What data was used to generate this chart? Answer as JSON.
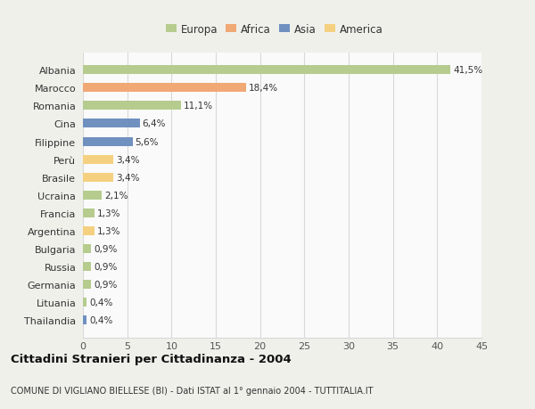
{
  "countries": [
    "Albania",
    "Marocco",
    "Romania",
    "Cina",
    "Filippine",
    "Perù",
    "Brasile",
    "Ucraina",
    "Francia",
    "Argentina",
    "Bulgaria",
    "Russia",
    "Germania",
    "Lituania",
    "Thailandia"
  ],
  "values": [
    41.5,
    18.4,
    11.1,
    6.4,
    5.6,
    3.4,
    3.4,
    2.1,
    1.3,
    1.3,
    0.9,
    0.9,
    0.9,
    0.4,
    0.4
  ],
  "labels": [
    "41,5%",
    "18,4%",
    "11,1%",
    "6,4%",
    "5,6%",
    "3,4%",
    "3,4%",
    "2,1%",
    "1,3%",
    "1,3%",
    "0,9%",
    "0,9%",
    "0,9%",
    "0,4%",
    "0,4%"
  ],
  "colors": [
    "#b5cc8e",
    "#f0a875",
    "#b5cc8e",
    "#7090c0",
    "#7090c0",
    "#f5d080",
    "#f5d080",
    "#b5cc8e",
    "#b5cc8e",
    "#f5d080",
    "#b5cc8e",
    "#b5cc8e",
    "#b5cc8e",
    "#b5cc8e",
    "#7090c0"
  ],
  "legend_labels": [
    "Europa",
    "Africa",
    "Asia",
    "America"
  ],
  "legend_colors": [
    "#b5cc8e",
    "#f0a875",
    "#7090c0",
    "#f5d080"
  ],
  "title": "Cittadini Stranieri per Cittadinanza - 2004",
  "subtitle": "COMUNE DI VIGLIANO BIELLESE (BI) - Dati ISTAT al 1° gennaio 2004 - TUTTITALIA.IT",
  "xlim": [
    0,
    45
  ],
  "xticks": [
    0,
    5,
    10,
    15,
    20,
    25,
    30,
    35,
    40,
    45
  ],
  "background_color": "#f0f0eb",
  "bar_background": "#fafafa",
  "grid_color": "#d8d8d8",
  "bar_height": 0.5
}
